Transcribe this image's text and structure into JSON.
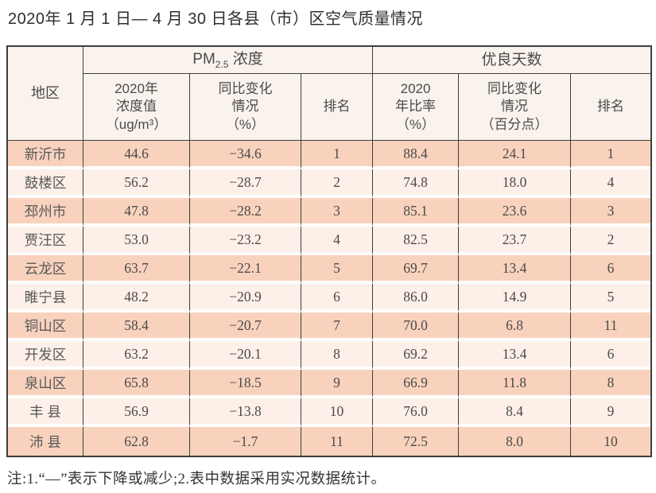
{
  "title": "2020年 1 月 1 日— 4 月 30 日各县（市）区空气质量情况",
  "table": {
    "region_header": "地区",
    "pm_group": {
      "prefix": "PM",
      "sub": "2.5",
      "suffix": " 浓度"
    },
    "good_days_group": "优良天数",
    "sub_headers": {
      "pm_value": "2020年\n浓度值\n（ug/m³）",
      "pm_change": "同比变化\n情况\n（%）",
      "pm_rank": "排名",
      "gd_ratio": "2020\n年比率\n（%）",
      "gd_change": "同比变化\n情况\n（百分点）",
      "gd_rank": "排名"
    },
    "rows": [
      {
        "region": "新沂市",
        "pm_value": "44.6",
        "pm_change": "−34.6",
        "pm_rank": "1",
        "gd_ratio": "88.4",
        "gd_change": "24.1",
        "gd_rank": "1"
      },
      {
        "region": "鼓楼区",
        "pm_value": "56.2",
        "pm_change": "−28.7",
        "pm_rank": "2",
        "gd_ratio": "74.8",
        "gd_change": "18.0",
        "gd_rank": "4"
      },
      {
        "region": "邳州市",
        "pm_value": "47.8",
        "pm_change": "−28.2",
        "pm_rank": "3",
        "gd_ratio": "85.1",
        "gd_change": "23.6",
        "gd_rank": "3"
      },
      {
        "region": "贾汪区",
        "pm_value": "53.0",
        "pm_change": "−23.2",
        "pm_rank": "4",
        "gd_ratio": "82.5",
        "gd_change": "23.7",
        "gd_rank": "2"
      },
      {
        "region": "云龙区",
        "pm_value": "63.7",
        "pm_change": "−22.1",
        "pm_rank": "5",
        "gd_ratio": "69.7",
        "gd_change": "13.4",
        "gd_rank": "6"
      },
      {
        "region": "睢宁县",
        "pm_value": "48.2",
        "pm_change": "−20.9",
        "pm_rank": "6",
        "gd_ratio": "86.0",
        "gd_change": "14.9",
        "gd_rank": "5"
      },
      {
        "region": "铜山区",
        "pm_value": "58.4",
        "pm_change": "−20.7",
        "pm_rank": "7",
        "gd_ratio": "70.0",
        "gd_change": "6.8",
        "gd_rank": "11"
      },
      {
        "region": "开发区",
        "pm_value": "63.2",
        "pm_change": "−20.1",
        "pm_rank": "8",
        "gd_ratio": "69.2",
        "gd_change": "13.4",
        "gd_rank": "6"
      },
      {
        "region": "泉山区",
        "pm_value": "65.8",
        "pm_change": "−18.5",
        "pm_rank": "9",
        "gd_ratio": "66.9",
        "gd_change": "11.8",
        "gd_rank": "8"
      },
      {
        "region": "丰 县",
        "pm_value": "56.9",
        "pm_change": "−13.8",
        "pm_rank": "10",
        "gd_ratio": "76.0",
        "gd_change": "8.4",
        "gd_rank": "9"
      },
      {
        "region": "沛 县",
        "pm_value": "62.8",
        "pm_change": "−1.7",
        "pm_rank": "11",
        "gd_ratio": "72.5",
        "gd_change": "8.0",
        "gd_rank": "10"
      }
    ]
  },
  "note": "注:1.“—”表示下降或减少;2.表中数据采用实况数据统计。",
  "colors": {
    "row_dark": "#f8d2bd",
    "row_light": "#fcf0e8",
    "header_bg": "#faf3ed",
    "border": "#3e3e3e",
    "page_bg": "#ffffff",
    "title_text": "#2e2e2e",
    "body_text": "#4a4a4a"
  }
}
